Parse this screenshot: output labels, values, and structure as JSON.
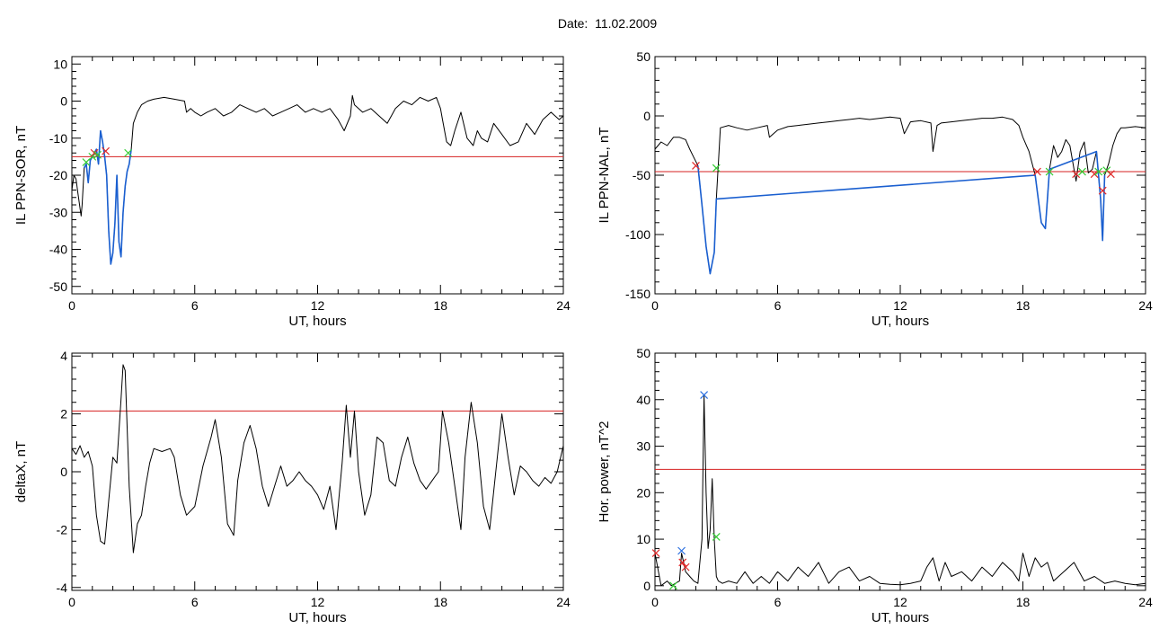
{
  "title": "Date:  11.02.2009",
  "colors": {
    "trace": "#000000",
    "threshold": "#d62020",
    "highlight": "#1a5fd0",
    "marker_red": "#e02828",
    "marker_green": "#33cc33",
    "marker_blue": "#2a6fe0"
  },
  "chart_data": [
    {
      "type": "line",
      "title": "",
      "xlabel": "UT, hours",
      "ylabel": "IL PPN-SOR, nT",
      "xlim": [
        0,
        24
      ],
      "ylim": [
        -52,
        12
      ],
      "xticks": [
        0,
        6,
        12,
        18,
        24
      ],
      "yticks": [
        -50,
        -40,
        -30,
        -20,
        -10,
        0,
        10
      ],
      "threshold": -15,
      "series": [
        {
          "x": [
            0,
            0.1,
            0.2,
            0.3,
            0.45,
            0.5,
            0.6,
            0.7,
            0.8,
            0.9,
            1.0,
            1.1,
            1.2,
            1.3,
            1.4,
            1.5,
            1.6,
            1.7,
            1.8,
            1.9,
            2.0,
            2.1,
            2.2,
            2.3,
            2.4,
            2.5,
            2.6,
            2.7,
            2.8,
            2.9,
            3.0,
            3.2,
            3.4,
            3.7,
            4.0,
            4.5,
            5.0,
            5.5,
            5.6,
            5.8,
            6.0,
            6.3,
            6.6,
            7.0,
            7.4,
            7.8,
            8.2,
            8.6,
            9.0,
            9.4,
            9.8,
            10.2,
            10.6,
            11.0,
            11.4,
            11.8,
            12.2,
            12.6,
            13.0,
            13.3,
            13.6,
            13.7,
            13.8,
            14.2,
            14.6,
            15.0,
            15.4,
            15.8,
            16.2,
            16.6,
            17.0,
            17.4,
            17.8,
            18.0,
            18.1,
            18.3,
            18.5,
            18.7,
            19.0,
            19.3,
            19.6,
            19.8,
            20.0,
            20.3,
            20.6,
            21.0,
            21.4,
            21.8,
            22.2,
            22.6,
            23.0,
            23.4,
            23.8,
            24.0
          ],
          "y": [
            -24,
            -20,
            -21,
            -25,
            -31,
            -28,
            -18,
            -17,
            -22,
            -16,
            -15,
            -14,
            -13,
            -17,
            -8,
            -11,
            -15,
            -20,
            -35,
            -44,
            -41,
            -33,
            -20,
            -38,
            -42,
            -30,
            -23,
            -19,
            -17,
            -13,
            -6,
            -3,
            -1,
            0,
            0.5,
            1,
            0.5,
            0,
            -3,
            -2,
            -3,
            -4,
            -3,
            -2,
            -4,
            -3,
            -1,
            -2,
            -3,
            -2,
            -4,
            -3,
            -2,
            -1,
            -3,
            -2,
            -3,
            -2,
            -5,
            -8,
            -4,
            1.5,
            -1,
            -3,
            -2,
            -4,
            -6,
            -2,
            0,
            -1,
            1,
            0,
            1,
            -2,
            -5,
            -11,
            -12,
            -8,
            -3,
            -10,
            -12,
            -8,
            -10,
            -11,
            -6,
            -9,
            -12,
            -11,
            -6,
            -9,
            -5,
            -3,
            -5,
            -4
          ]
        },
        {
          "name": "highlight",
          "x": [
            0.6,
            0.7,
            0.8,
            0.9,
            1.0,
            1.1,
            1.2,
            1.3,
            1.4,
            1.5,
            1.6,
            1.7,
            1.8,
            1.9,
            2.0,
            2.1,
            2.2,
            2.3,
            2.4,
            2.5,
            2.6,
            2.7,
            2.8,
            2.9
          ],
          "y": [
            -18,
            -17,
            -22,
            -16,
            -15,
            -14,
            -13,
            -17,
            -8,
            -11,
            -15,
            -20,
            -35,
            -44,
            -41,
            -33,
            -20,
            -38,
            -42,
            -30,
            -23,
            -19,
            -17,
            -13
          ]
        }
      ],
      "markers": [
        {
          "x": 0.7,
          "y": -16.5,
          "color": "green"
        },
        {
          "x": 1.0,
          "y": -15,
          "color": "green"
        },
        {
          "x": 1.1,
          "y": -14,
          "color": "red"
        },
        {
          "x": 1.25,
          "y": -14.5,
          "color": "green"
        },
        {
          "x": 1.65,
          "y": -13.5,
          "color": "red"
        },
        {
          "x": 2.75,
          "y": -14,
          "color": "green"
        }
      ]
    },
    {
      "type": "line",
      "title": "",
      "xlabel": "UT, hours",
      "ylabel": "IL PPN-NAL, nT",
      "xlim": [
        0,
        24
      ],
      "ylim": [
        -150,
        50
      ],
      "xticks": [
        0,
        6,
        12,
        18,
        24
      ],
      "yticks": [
        -150,
        -100,
        -50,
        0,
        50
      ],
      "threshold": -47,
      "series": [
        {
          "x": [
            0,
            0.3,
            0.6,
            0.9,
            1.2,
            1.5,
            1.7,
            1.9,
            2.1,
            2.3,
            2.5,
            2.7,
            2.9,
            3.0,
            3.2,
            3.6,
            4.0,
            4.5,
            5.0,
            5.5,
            5.6,
            6.0,
            6.5,
            7.0,
            7.5,
            8.0,
            8.5,
            9.0,
            9.5,
            10.0,
            10.5,
            11.0,
            11.5,
            12.0,
            12.2,
            12.5,
            13.0,
            13.5,
            13.6,
            13.8,
            14.0,
            14.5,
            15.0,
            15.5,
            16.0,
            16.5,
            17.0,
            17.5,
            17.8,
            18.0,
            18.3,
            18.6,
            18.9,
            19.1,
            19.3,
            19.5,
            19.7,
            19.9,
            20.1,
            20.3,
            20.5,
            20.6,
            20.8,
            21.0,
            21.2,
            21.4,
            21.6,
            21.8,
            21.9,
            22.0,
            22.2,
            22.4,
            22.6,
            22.8,
            23.0,
            23.5,
            24.0
          ],
          "y": [
            -28,
            -22,
            -25,
            -18,
            -18,
            -20,
            -28,
            -35,
            -42,
            -75,
            -110,
            -133,
            -115,
            -70,
            -10,
            -8,
            -10,
            -12,
            -10,
            -8,
            -18,
            -12,
            -9,
            -8,
            -7,
            -6,
            -5,
            -4,
            -3,
            -2,
            -3,
            -2,
            -1,
            -2,
            -15,
            -5,
            -4,
            -6,
            -30,
            -8,
            -6,
            -5,
            -4,
            -3,
            -2,
            -2,
            -1,
            -3,
            -8,
            -18,
            -30,
            -50,
            -90,
            -95,
            -45,
            -25,
            -35,
            -30,
            -20,
            -25,
            -45,
            -55,
            -30,
            -22,
            -48,
            -45,
            -30,
            -70,
            -105,
            -50,
            -40,
            -25,
            -15,
            -10,
            -10,
            -9,
            -10
          ]
        },
        {
          "name": "highlight",
          "x": [
            2.1,
            2.3,
            2.5,
            2.7,
            2.9,
            3.0,
            18.6,
            18.9,
            19.1,
            19.3,
            21.6,
            21.8,
            21.9,
            22.0
          ],
          "y": [
            -42,
            -75,
            -110,
            -133,
            -115,
            -70,
            -50,
            -90,
            -95,
            -45,
            -30,
            -70,
            -105,
            -50
          ]
        }
      ],
      "markers": [
        {
          "x": 2.0,
          "y": -42,
          "color": "red"
        },
        {
          "x": 3.0,
          "y": -44,
          "color": "green"
        },
        {
          "x": 18.7,
          "y": -47,
          "color": "red"
        },
        {
          "x": 19.3,
          "y": -47,
          "color": "green"
        },
        {
          "x": 20.6,
          "y": -49,
          "color": "red"
        },
        {
          "x": 20.9,
          "y": -47,
          "color": "green"
        },
        {
          "x": 21.5,
          "y": -49,
          "color": "red"
        },
        {
          "x": 21.7,
          "y": -47,
          "color": "green"
        },
        {
          "x": 21.9,
          "y": -63,
          "color": "red"
        },
        {
          "x": 22.1,
          "y": -46,
          "color": "green"
        },
        {
          "x": 22.3,
          "y": -49,
          "color": "red"
        }
      ]
    },
    {
      "type": "line",
      "title": "",
      "xlabel": "UT, hours",
      "ylabel": "deltaX, nT",
      "xlim": [
        0,
        24
      ],
      "ylim": [
        -4.1,
        4.1
      ],
      "xticks": [
        0,
        6,
        12,
        18,
        24
      ],
      "yticks": [
        -4,
        -2,
        0,
        2,
        4
      ],
      "threshold": 2.1,
      "series": [
        {
          "x": [
            0,
            0.2,
            0.4,
            0.6,
            0.8,
            1.0,
            1.2,
            1.4,
            1.6,
            1.8,
            2.0,
            2.2,
            2.4,
            2.5,
            2.6,
            2.8,
            3.0,
            3.2,
            3.4,
            3.6,
            3.8,
            4.0,
            4.4,
            4.8,
            5.0,
            5.3,
            5.6,
            6.0,
            6.4,
            6.8,
            7.0,
            7.3,
            7.6,
            7.9,
            8.1,
            8.4,
            8.7,
            9.0,
            9.3,
            9.6,
            9.9,
            10.2,
            10.5,
            10.8,
            11.1,
            11.4,
            11.7,
            12.0,
            12.3,
            12.6,
            12.9,
            13.2,
            13.4,
            13.6,
            13.8,
            14.0,
            14.3,
            14.6,
            14.9,
            15.2,
            15.5,
            15.8,
            16.1,
            16.4,
            16.7,
            17.0,
            17.3,
            17.6,
            17.9,
            18.1,
            18.4,
            18.7,
            19.0,
            19.2,
            19.5,
            19.8,
            20.1,
            20.4,
            20.7,
            21.0,
            21.3,
            21.6,
            21.9,
            22.2,
            22.5,
            22.8,
            23.1,
            23.4,
            23.7,
            24.0
          ],
          "y": [
            0.8,
            0.6,
            0.9,
            0.5,
            0.7,
            0.2,
            -1.5,
            -2.4,
            -2.5,
            -1.0,
            0.5,
            0.3,
            2.5,
            3.7,
            3.5,
            -0.5,
            -2.8,
            -1.8,
            -1.5,
            -0.5,
            0.3,
            0.8,
            0.7,
            0.8,
            0.5,
            -0.8,
            -1.5,
            -1.2,
            0.2,
            1.2,
            1.8,
            0.5,
            -1.8,
            -2.2,
            -0.3,
            1.0,
            1.6,
            0.8,
            -0.5,
            -1.2,
            -0.5,
            0.2,
            -0.5,
            -0.3,
            0.0,
            -0.3,
            -0.5,
            -0.8,
            -1.3,
            -0.5,
            -2.0,
            0.3,
            2.3,
            0.5,
            2.1,
            0.0,
            -1.5,
            -0.8,
            1.2,
            1.0,
            -0.3,
            -0.5,
            0.5,
            1.2,
            0.3,
            -0.3,
            -0.6,
            -0.3,
            0.0,
            2.1,
            1.0,
            -0.5,
            -2.0,
            0.5,
            2.4,
            1.0,
            -1.2,
            -2.0,
            0.0,
            2.0,
            0.5,
            -0.8,
            0.2,
            0.0,
            -0.3,
            -0.5,
            -0.2,
            -0.4,
            0.0,
            0.9
          ]
        }
      ],
      "markers": []
    },
    {
      "type": "line",
      "title": "",
      "xlabel": "UT, hours",
      "ylabel": "Hor. power, nT^2",
      "xlim": [
        0,
        24
      ],
      "ylim": [
        -1,
        50
      ],
      "xticks": [
        0,
        6,
        12,
        18,
        24
      ],
      "yticks": [
        0,
        10,
        20,
        30,
        40,
        50
      ],
      "threshold": 25,
      "series": [
        {
          "x": [
            0,
            0.3,
            0.6,
            0.8,
            1.0,
            1.2,
            1.3,
            1.4,
            1.5,
            1.7,
            1.9,
            2.1,
            2.3,
            2.4,
            2.5,
            2.6,
            2.7,
            2.8,
            2.9,
            3.0,
            3.1,
            3.3,
            3.6,
            4.0,
            4.4,
            4.8,
            5.2,
            5.6,
            6.0,
            6.5,
            7.0,
            7.5,
            8.0,
            8.5,
            9.0,
            9.5,
            10.0,
            10.5,
            11.0,
            11.5,
            12.0,
            12.5,
            13.0,
            13.3,
            13.6,
            13.9,
            14.2,
            14.5,
            15.0,
            15.5,
            16.0,
            16.5,
            17.0,
            17.5,
            17.8,
            18.0,
            18.3,
            18.6,
            18.9,
            19.2,
            19.5,
            20.0,
            20.5,
            21.0,
            21.5,
            22.0,
            22.5,
            23.0,
            23.5,
            24.0
          ],
          "y": [
            7,
            0,
            1,
            0,
            0.5,
            1,
            7,
            5,
            3,
            2,
            1,
            0.5,
            10,
            41,
            20,
            8,
            12,
            23,
            10,
            2,
            1,
            0.5,
            1,
            0.5,
            3,
            0.5,
            2,
            0.5,
            3,
            1,
            4,
            2,
            5,
            0.5,
            3,
            4,
            1,
            2,
            0.5,
            0.3,
            0.2,
            0.5,
            1,
            4,
            6,
            1,
            5,
            2,
            3,
            1,
            4,
            2,
            5,
            3,
            1,
            7,
            2,
            6,
            4,
            5,
            1,
            3,
            5,
            1,
            2,
            0.5,
            1,
            0.5,
            0.2,
            0.5
          ]
        }
      ],
      "markers": [
        {
          "x": 0.05,
          "y": 7,
          "color": "red"
        },
        {
          "x": 0.9,
          "y": 0,
          "color": "green"
        },
        {
          "x": 1.3,
          "y": 7.5,
          "color": "blue"
        },
        {
          "x": 1.35,
          "y": 5,
          "color": "red"
        },
        {
          "x": 1.5,
          "y": 4,
          "color": "red"
        },
        {
          "x": 2.4,
          "y": 41,
          "color": "blue"
        },
        {
          "x": 3.0,
          "y": 10.5,
          "color": "green"
        }
      ]
    }
  ]
}
